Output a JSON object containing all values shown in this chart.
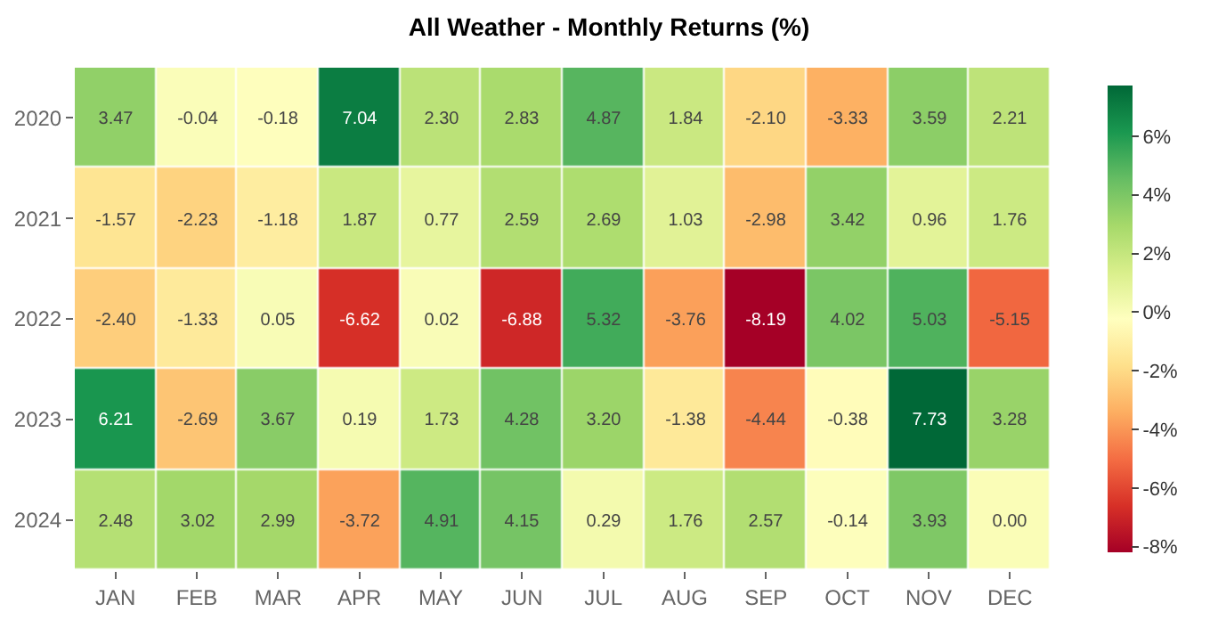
{
  "chart_data": {
    "type": "heatmap",
    "title": "All Weather - Monthly Returns (%)",
    "categories": [
      "JAN",
      "FEB",
      "MAR",
      "APR",
      "MAY",
      "JUN",
      "JUL",
      "AUG",
      "SEP",
      "OCT",
      "NOV",
      "DEC"
    ],
    "y_categories": [
      "2020",
      "2021",
      "2022",
      "2023",
      "2024"
    ],
    "cells": [
      [
        3.47,
        -0.04,
        -0.18,
        7.04,
        2.3,
        2.83,
        4.87,
        1.84,
        -2.1,
        -3.33,
        3.59,
        2.21
      ],
      [
        -1.57,
        -2.23,
        -1.18,
        1.87,
        0.77,
        2.59,
        2.69,
        1.03,
        -2.98,
        3.42,
        0.96,
        1.76
      ],
      [
        -2.4,
        -1.33,
        0.05,
        -6.62,
        0.02,
        -6.88,
        5.32,
        -3.76,
        -8.19,
        4.02,
        5.03,
        -5.15
      ],
      [
        6.21,
        -2.69,
        3.67,
        0.19,
        1.73,
        4.28,
        3.2,
        -1.38,
        -4.44,
        -0.38,
        7.73,
        3.28
      ],
      [
        2.48,
        3.02,
        2.99,
        -3.72,
        4.91,
        4.15,
        0.29,
        1.76,
        2.57,
        -0.14,
        3.93,
        0.0
      ]
    ],
    "cell_labels": [
      [
        "3.47",
        "-0.04",
        "-0.18",
        "7.04",
        "2.30",
        "2.83",
        "4.87",
        "1.84",
        "-2.10",
        "-3.33",
        "3.59",
        "2.21"
      ],
      [
        "-1.57",
        "-2.23",
        "-1.18",
        "1.87",
        "0.77",
        "2.59",
        "2.69",
        "1.03",
        "-2.98",
        "3.42",
        "0.96",
        "1.76"
      ],
      [
        "-2.40",
        "-1.33",
        "0.05",
        "-6.62",
        "0.02",
        "-6.88",
        "5.32",
        "-3.76",
        "-8.19",
        "4.02",
        "5.03",
        "-5.15"
      ],
      [
        "6.21",
        "-2.69",
        "3.67",
        "0.19",
        "1.73",
        "4.28",
        "3.20",
        "-1.38",
        "-4.44",
        "-0.38",
        "7.73",
        "3.28"
      ],
      [
        "2.48",
        "3.02",
        "2.99",
        "-3.72",
        "4.91",
        "4.15",
        "0.29",
        "1.76",
        "2.57",
        "-0.14",
        "3.93",
        "0.00"
      ]
    ],
    "clim": [
      -8.19,
      7.73
    ],
    "cticks": [
      {
        "value": -8,
        "label": "-8%"
      },
      {
        "value": -6,
        "label": "-6%"
      },
      {
        "value": -4,
        "label": "-4%"
      },
      {
        "value": -2,
        "label": "-2%"
      },
      {
        "value": 0,
        "label": "0%"
      },
      {
        "value": 2,
        "label": "2%"
      },
      {
        "value": 4,
        "label": "4%"
      },
      {
        "value": 6,
        "label": "6%"
      }
    ]
  }
}
